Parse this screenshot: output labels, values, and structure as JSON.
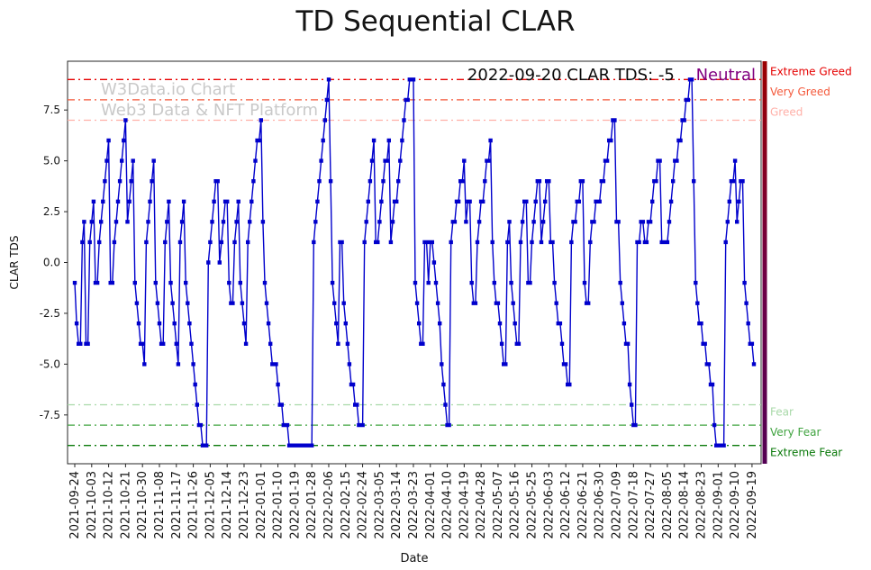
{
  "title": "TD Sequential CLAR",
  "watermark": {
    "line1": "W3Data.io Chart",
    "line2": "Web3 Data & NFT Platform"
  },
  "annotation": {
    "text": "2022-09-20 CLAR TDS: -5",
    "status": "Neutral",
    "status_color": "#800080"
  },
  "chart_data": {
    "type": "line",
    "title": "TD Sequential CLAR",
    "xlabel": "Date",
    "ylabel": "CLAR TDS",
    "ylim": [
      -9.9,
      9.9
    ],
    "yticks": [
      -7.5,
      -5.0,
      -2.5,
      0.0,
      2.5,
      5.0,
      7.5
    ],
    "x_tick_step": 9,
    "x_tick_labels": [
      "2021-09-24",
      "2021-10-03",
      "2021-10-12",
      "2021-10-21",
      "2021-10-30",
      "2021-11-08",
      "2021-11-17",
      "2021-11-26",
      "2021-12-05",
      "2021-12-14",
      "2021-12-23",
      "2022-01-01",
      "2022-01-10",
      "2022-01-19",
      "2022-01-28",
      "2022-02-06",
      "2022-02-15",
      "2022-02-24",
      "2022-03-05",
      "2022-03-14",
      "2022-03-23",
      "2022-04-01",
      "2022-04-10",
      "2022-04-19",
      "2022-04-28",
      "2022-05-07",
      "2022-05-16",
      "2022-05-25",
      "2022-06-03",
      "2022-06-12",
      "2022-06-21",
      "2022-06-30",
      "2022-07-09",
      "2022-07-18",
      "2022-07-27",
      "2022-08-05",
      "2022-08-14",
      "2022-08-23",
      "2022-09-01",
      "2022-09-10",
      "2022-09-19"
    ],
    "ref_lines": [
      {
        "value": 9,
        "label": "Extreme Greed",
        "color": "#e60000"
      },
      {
        "value": 8,
        "label": "Very Greed",
        "color": "#f4593b"
      },
      {
        "value": 7,
        "label": "Greed",
        "color": "#ffb0a8"
      },
      {
        "value": -7,
        "label": "Fear",
        "color": "#a9d9a9"
      },
      {
        "value": -8,
        "label": "Very Fear",
        "color": "#3fa33f"
      },
      {
        "value": -9,
        "label": "Extreme Fear",
        "color": "#0b7a0b"
      }
    ],
    "right_bar": {
      "color_top": "#9b0000",
      "color_mid": "#6e0046",
      "color_bottom": "#530053"
    },
    "series": [
      {
        "name": "CLAR TDS",
        "color": "#0000cc",
        "marker": "square",
        "values": [
          -1,
          -3,
          -4,
          -4,
          1,
          2,
          -4,
          -4,
          1,
          2,
          3,
          -1,
          -1,
          1,
          2,
          3,
          4,
          5,
          6,
          -1,
          -1,
          1,
          2,
          3,
          4,
          5,
          6,
          7,
          2,
          3,
          4,
          5,
          -1,
          -2,
          -3,
          -4,
          -4,
          -5,
          1,
          2,
          3,
          4,
          5,
          -1,
          -2,
          -3,
          -4,
          -4,
          1,
          2,
          3,
          -1,
          -2,
          -3,
          -4,
          -5,
          1,
          2,
          3,
          -1,
          -2,
          -3,
          -4,
          -5,
          -6,
          -7,
          -8,
          -8,
          -9,
          -9,
          -9,
          0,
          1,
          2,
          3,
          4,
          4,
          0,
          1,
          2,
          3,
          3,
          -1,
          -2,
          -2,
          1,
          2,
          3,
          -1,
          -2,
          -3,
          -4,
          1,
          2,
          3,
          4,
          5,
          6,
          6,
          7,
          2,
          -1,
          -2,
          -3,
          -4,
          -5,
          -5,
          -5,
          -6,
          -7,
          -7,
          -8,
          -8,
          -8,
          -9,
          -9,
          -9,
          -9,
          -9,
          -9,
          -9,
          -9,
          -9,
          -9,
          -9,
          -9,
          -9,
          1,
          2,
          3,
          4,
          5,
          6,
          7,
          8,
          9,
          4,
          -1,
          -2,
          -3,
          -4,
          1,
          1,
          -2,
          -3,
          -4,
          -5,
          -6,
          -6,
          -7,
          -7,
          -8,
          -8,
          -8,
          1,
          2,
          3,
          4,
          5,
          6,
          1,
          1,
          2,
          3,
          4,
          5,
          5,
          6,
          1,
          2,
          3,
          3,
          4,
          5,
          6,
          7,
          8,
          8,
          9,
          9,
          9,
          -1,
          -2,
          -3,
          -4,
          -4,
          1,
          1,
          -1,
          1,
          1,
          0,
          -1,
          -2,
          -3,
          -5,
          -6,
          -7,
          -8,
          -8,
          1,
          2,
          2,
          3,
          3,
          4,
          4,
          5,
          2,
          3,
          3,
          -1,
          -2,
          -2,
          1,
          2,
          3,
          3,
          4,
          5,
          5,
          6,
          1,
          -1,
          -2,
          -2,
          -3,
          -4,
          -5,
          -5,
          1,
          2,
          -1,
          -2,
          -3,
          -4,
          -4,
          1,
          2,
          3,
          3,
          -1,
          -1,
          1,
          2,
          3,
          4,
          4,
          1,
          2,
          3,
          4,
          4,
          1,
          1,
          -1,
          -2,
          -3,
          -3,
          -4,
          -5,
          -5,
          -6,
          -6,
          1,
          2,
          2,
          3,
          3,
          4,
          4,
          -1,
          -2,
          -2,
          1,
          2,
          2,
          3,
          3,
          3,
          4,
          4,
          5,
          5,
          6,
          6,
          7,
          7,
          2,
          2,
          -1,
          -2,
          -3,
          -4,
          -4,
          -6,
          -7,
          -8,
          -8,
          1,
          1,
          2,
          2,
          1,
          1,
          2,
          2,
          3,
          4,
          4,
          5,
          5,
          1,
          1,
          1,
          1,
          2,
          3,
          4,
          5,
          5,
          6,
          6,
          7,
          7,
          8,
          8,
          9,
          9,
          4,
          -1,
          -2,
          -3,
          -3,
          -4,
          -4,
          -5,
          -5,
          -6,
          -6,
          -8,
          -9,
          -9,
          -9,
          -9,
          -9,
          1,
          2,
          3,
          4,
          4,
          5,
          2,
          3,
          4,
          4,
          -1,
          -2,
          -3,
          -4,
          -4,
          -5
        ]
      }
    ]
  }
}
